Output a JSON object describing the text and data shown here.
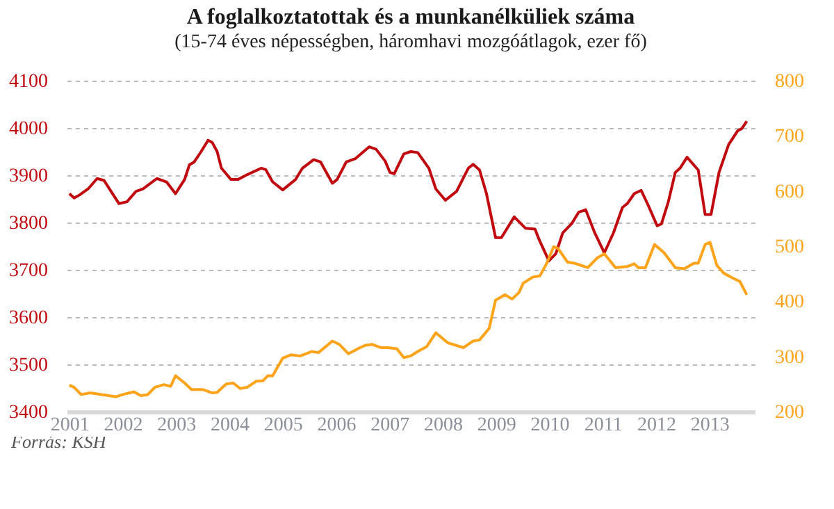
{
  "chart_data": {
    "type": "line",
    "title": "A foglalkoztatottak és a munkanélküliek száma",
    "subtitle": "(15-74 éves népességben, háromhavi mozgóátlagok, ezer fő)",
    "annotations": [
      "Forrás: KSH"
    ],
    "xlim": [
      2000.95,
      2013.85
    ],
    "xticks": [
      2001,
      2002,
      2003,
      2004,
      2005,
      2006,
      2007,
      2008,
      2009,
      2010,
      2011,
      2012,
      2013
    ],
    "ylim": [
      3400,
      4100
    ],
    "yticks": [
      3400,
      3500,
      3600,
      3700,
      3800,
      3900,
      4000,
      4100
    ],
    "y2lim": [
      200,
      800
    ],
    "y2ticks": [
      200,
      300,
      400,
      500,
      600,
      700,
      800
    ],
    "grid": "y",
    "line_style": "solid",
    "marker": "none",
    "series": [
      {
        "color": "#c00a0f",
        "x": [
          2001.0,
          2001.09,
          2001.2,
          2001.35,
          2001.52,
          2001.65,
          2001.78,
          2001.93,
          2002.08,
          2002.25,
          2002.38,
          2002.64,
          2002.82,
          2002.99,
          2003.16,
          2003.25,
          2003.34,
          2003.47,
          2003.6,
          2003.68,
          2003.77,
          2003.85,
          2004.03,
          2004.16,
          2004.33,
          2004.6,
          2004.68,
          2004.81,
          2005.0,
          2005.24,
          2005.37,
          2005.58,
          2005.71,
          2005.93,
          2006.02,
          2006.19,
          2006.36,
          2006.62,
          2006.75,
          2006.92,
          2007.01,
          2007.09,
          2007.27,
          2007.4,
          2007.53,
          2007.74,
          2007.87,
          2008.05,
          2008.26,
          2008.48,
          2008.57,
          2008.69,
          2008.82,
          2008.99,
          2009.1,
          2009.34,
          2009.55,
          2009.73,
          2009.81,
          2009.99,
          2010.12,
          2010.25,
          2010.42,
          2010.55,
          2010.68,
          2010.85,
          2011.03,
          2011.2,
          2011.37,
          2011.46,
          2011.59,
          2011.72,
          2011.85,
          2012.02,
          2012.1,
          2012.23,
          2012.36,
          2012.45,
          2012.58,
          2012.79,
          2012.92,
          2013.03,
          2013.18,
          2013.36,
          2013.53,
          2013.61,
          2013.7
        ],
        "values": [
          3861,
          3852,
          3859,
          3871,
          3893,
          3889,
          3866,
          3840,
          3844,
          3866,
          3871,
          3893,
          3886,
          3861,
          3891,
          3922,
          3928,
          3950,
          3974,
          3969,
          3950,
          3915,
          3891,
          3891,
          3901,
          3915,
          3912,
          3886,
          3869,
          3891,
          3915,
          3933,
          3928,
          3883,
          3891,
          3928,
          3935,
          3960,
          3955,
          3930,
          3906,
          3903,
          3945,
          3950,
          3948,
          3915,
          3871,
          3847,
          3866,
          3915,
          3923,
          3911,
          3861,
          3768,
          3768,
          3812,
          3788,
          3786,
          3763,
          3719,
          3734,
          3778,
          3798,
          3822,
          3827,
          3778,
          3736,
          3778,
          3832,
          3840,
          3861,
          3868,
          3837,
          3793,
          3797,
          3844,
          3906,
          3915,
          3938,
          3911,
          3817,
          3817,
          3906,
          3965,
          3994,
          3999,
          4014
        ]
      },
      {
        "color": "#ffa31a",
        "axis": "y2",
        "x": [
          2001.0,
          2001.09,
          2001.22,
          2001.39,
          2001.61,
          2001.87,
          2002.0,
          2002.21,
          2002.34,
          2002.47,
          2002.6,
          2002.77,
          2002.9,
          2002.99,
          2003.16,
          2003.29,
          2003.51,
          2003.68,
          2003.77,
          2003.94,
          2004.07,
          2004.2,
          2004.33,
          2004.5,
          2004.63,
          2004.72,
          2004.81,
          2005.0,
          2005.15,
          2005.33,
          2005.54,
          2005.67,
          2005.93,
          2006.06,
          2006.23,
          2006.41,
          2006.54,
          2006.67,
          2006.84,
          2006.97,
          2007.14,
          2007.27,
          2007.4,
          2007.53,
          2007.7,
          2007.87,
          2008.09,
          2008.39,
          2008.57,
          2008.69,
          2008.87,
          2008.99,
          2009.17,
          2009.3,
          2009.43,
          2009.51,
          2009.69,
          2009.82,
          2009.95,
          2010.08,
          2010.16,
          2010.34,
          2010.47,
          2010.6,
          2010.72,
          2010.9,
          2011.03,
          2011.24,
          2011.46,
          2011.59,
          2011.67,
          2011.8,
          2011.97,
          2012.15,
          2012.36,
          2012.53,
          2012.71,
          2012.79,
          2012.92,
          2013.01,
          2013.14,
          2013.27,
          2013.44,
          2013.57,
          2013.7
        ],
        "values": [
          248,
          244,
          231,
          234,
          231,
          227,
          231,
          236,
          229,
          231,
          244,
          249,
          246,
          265,
          252,
          240,
          240,
          234,
          235,
          250,
          252,
          242,
          244,
          255,
          256,
          265,
          265,
          297,
          303,
          301,
          309,
          307,
          328,
          322,
          305,
          314,
          320,
          322,
          316,
          316,
          314,
          298,
          301,
          309,
          318,
          343,
          325,
          316,
          328,
          330,
          351,
          402,
          412,
          404,
          416,
          433,
          444,
          446,
          469,
          499,
          496,
          471,
          469,
          465,
          461,
          479,
          486,
          461,
          463,
          468,
          461,
          461,
          503,
          488,
          461,
          459,
          469,
          469,
          503,
          507,
          465,
          451,
          442,
          436,
          412
        ]
      }
    ]
  }
}
